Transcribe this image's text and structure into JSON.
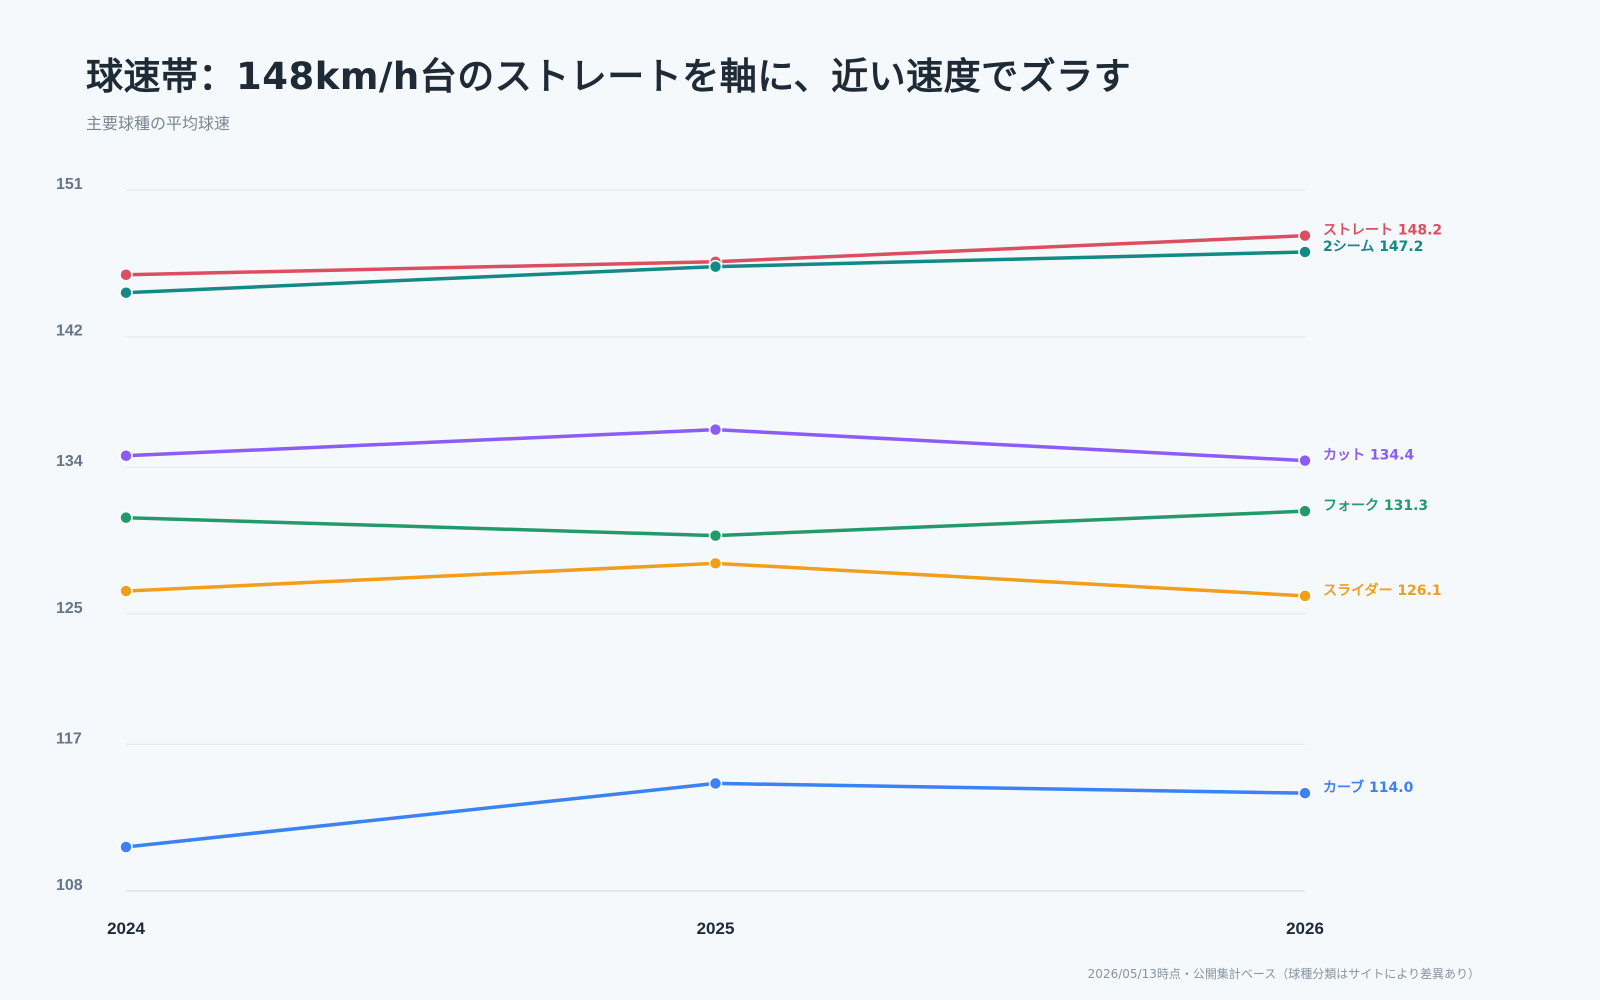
{
  "title": "球速帯：148km/h台のストレートを軸に、近い速度でズラす",
  "subtitle": "主要球種の平均球速",
  "footnote": "2026/05/13時点・公開集計ベース（球種分類はサイトにより差異あり）",
  "chart_data": {
    "type": "line",
    "title": "球速帯：148km/h台のストレートを軸に、近い速度でズラす",
    "subtitle": "主要球種の平均球速",
    "xlabel": "",
    "ylabel": "",
    "x": [
      "2024",
      "2025",
      "2026"
    ],
    "ylim": [
      108,
      151
    ],
    "yticks": [
      108,
      117,
      125,
      134,
      142,
      151
    ],
    "grid": true,
    "legend": "end-of-line labels",
    "series": [
      {
        "name": "ストレート",
        "color": "#dc4f61",
        "values": [
          145.8,
          146.6,
          148.2
        ],
        "end_label": "ストレート 148.2"
      },
      {
        "name": "2シーム",
        "color": "#138a86",
        "values": [
          144.7,
          146.3,
          147.2
        ],
        "end_label": "2シーム 147.2"
      },
      {
        "name": "カット",
        "color": "#8b5cf6",
        "values": [
          134.7,
          136.3,
          134.4
        ],
        "end_label": "カット 134.4"
      },
      {
        "name": "フォーク",
        "color": "#249a6b",
        "values": [
          130.9,
          129.8,
          131.3
        ],
        "end_label": "フォーク 131.3"
      },
      {
        "name": "スライダー",
        "color": "#f29d1b",
        "values": [
          126.4,
          128.1,
          126.1
        ],
        "end_label": "スライダー 126.1"
      },
      {
        "name": "カーブ",
        "color": "#3b82f6",
        "values": [
          110.7,
          114.6,
          114.0
        ],
        "end_label": "カーブ 114.0"
      }
    ]
  }
}
